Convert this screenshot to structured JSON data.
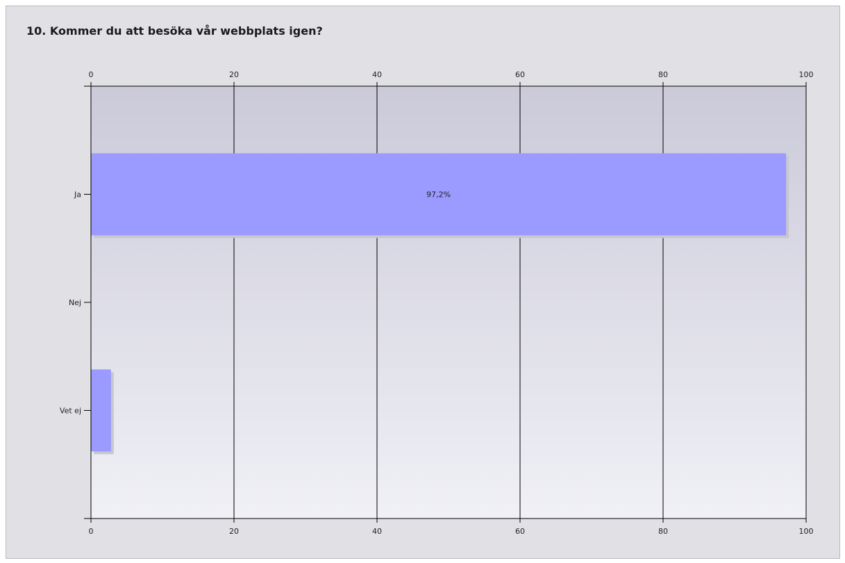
{
  "title": "10. Kommer du att besöka vår webbplats igen?",
  "colors": {
    "bar": "#9a9aff",
    "bar_shadow": "#c7c7d0",
    "plot_top": "#cbcad9",
    "plot_bottom": "#f0f0f6",
    "panel": "#e1e0e5",
    "axis": "#000000"
  },
  "chart_data": {
    "type": "bar",
    "orientation": "horizontal",
    "title": "10. Kommer du att besöka vår webbplats igen?",
    "categories": [
      "Ja",
      "Nej",
      "Vet ej"
    ],
    "values": [
      97.2,
      0,
      2.8
    ],
    "data_labels": [
      "97,2%",
      "",
      ""
    ],
    "xlim": [
      0,
      100
    ],
    "x_ticks": [
      0,
      20,
      40,
      60,
      80,
      100
    ],
    "grid": true,
    "axis_labels_top_and_bottom": true
  }
}
